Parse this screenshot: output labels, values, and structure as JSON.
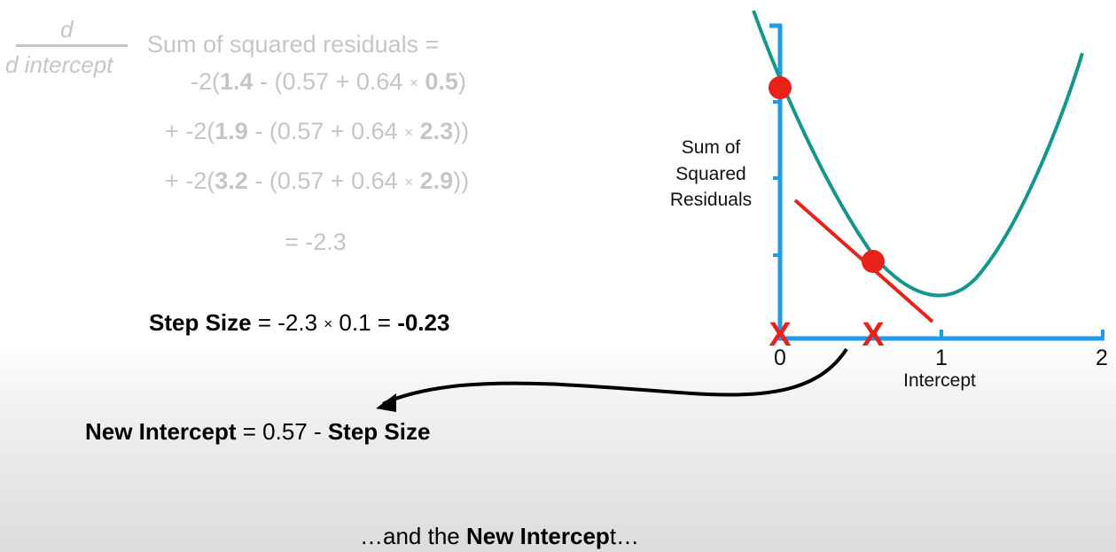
{
  "derivative": {
    "numerator": "d",
    "denominator": "d intercept",
    "label": "Sum of squared residuals ="
  },
  "terms": [
    {
      "prefix": "-2(",
      "obs": "1.4",
      "mid": " - (0.57 + 0.64 ",
      "times": "×",
      "x": "0.5",
      "suffix": ")"
    },
    {
      "prefix": "+ -2(",
      "obs": "1.9",
      "mid": " - (0.57 + 0.64 ",
      "times": "×",
      "x": "2.3",
      "suffix": "))"
    },
    {
      "prefix": "+ -2(",
      "obs": "3.2",
      "mid": " - (0.57 + 0.64 ",
      "times": "×",
      "x": "2.9",
      "suffix": "))"
    }
  ],
  "result": "= -2.3",
  "step_size": {
    "label": "Step Size",
    "expr_a": " = -2.3 ",
    "times": "×",
    "expr_b": " 0.1 = ",
    "value": "-0.23"
  },
  "new_intercept": {
    "label": "New Intercept",
    "expr": " = 0.57 - ",
    "step": "Step Size"
  },
  "caption": {
    "pre": "…and the ",
    "bold": "New Intercep",
    "post": "t…"
  },
  "graph": {
    "y_label_lines": [
      "Sum of",
      "Squared",
      "Residuals"
    ],
    "x_label": "Intercept",
    "x_ticks": [
      "0",
      "1",
      "2"
    ],
    "marker": "X",
    "colors": {
      "axis": "#1f9bea",
      "curve": "#12978a",
      "point": "#e8221b",
      "tangent": "#e8221b",
      "marker": "#e8221b",
      "arrow": "#000000"
    }
  }
}
